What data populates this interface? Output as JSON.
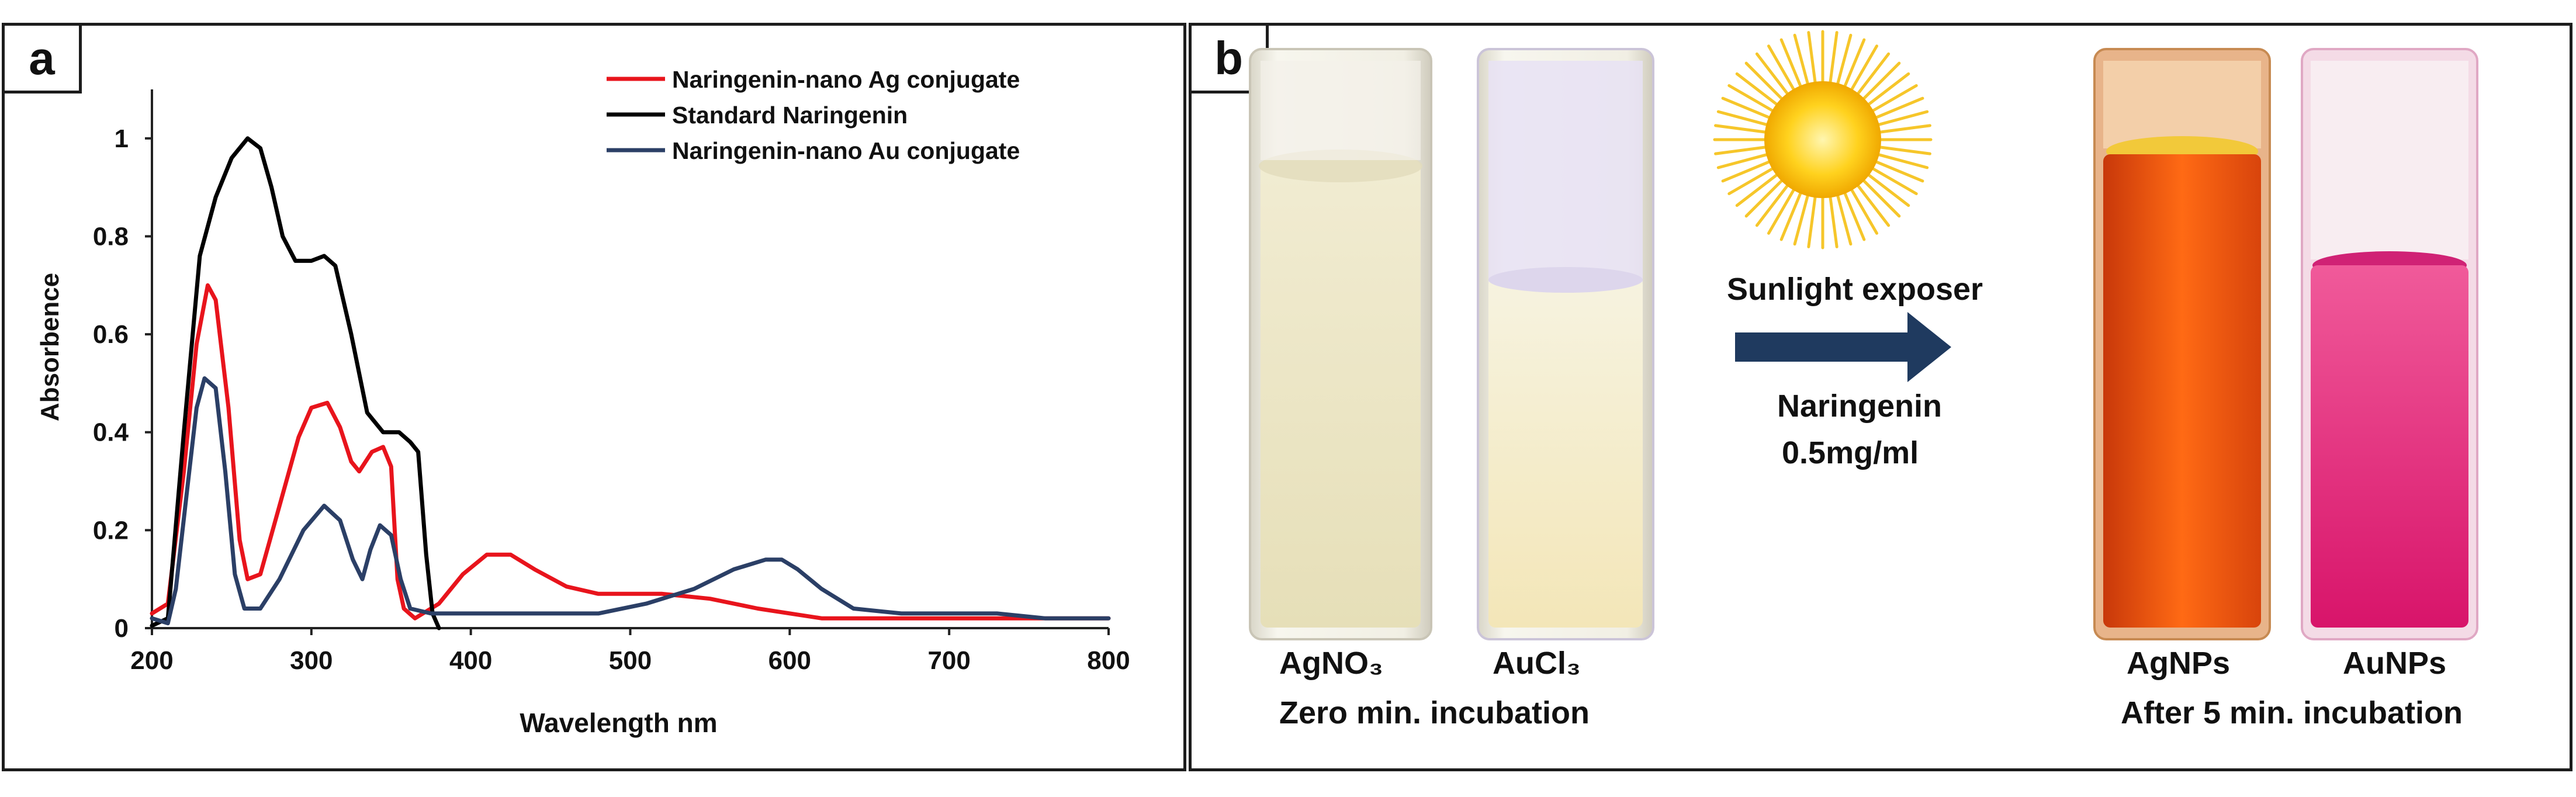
{
  "panel_a": {
    "label": "a"
  },
  "panel_b": {
    "label": "b",
    "left_caption": {
      "samples": [
        "AgNO₃",
        "AuCl₃"
      ],
      "condition": "Zero min. incubation"
    },
    "right_caption": {
      "samples": [
        "AgNPs",
        "AuNPs"
      ],
      "condition": "After 5 min. incubation"
    },
    "arrow_top_label": "Sunlight exposer",
    "arrow_bottom_label_1": "Naringenin",
    "arrow_bottom_label_2": "0.5mg/ml",
    "colors": {
      "arrow": "#1f3a5f",
      "sun": "#f3b400",
      "agno3_liquid": "#eee9c8",
      "aucl3_liquid": "#f4f0d6",
      "agnps_liquid": "#ff5a10",
      "aunps_liquid": "#e0206f"
    }
  },
  "chart_data": {
    "type": "line",
    "title": "",
    "xlabel": "Wavelength nm",
    "ylabel": "Absorbence",
    "xlim": [
      200,
      800
    ],
    "ylim": [
      0,
      1.1
    ],
    "xticks": [
      "200",
      "300",
      "400",
      "500",
      "600",
      "700",
      "800"
    ],
    "yticks": [
      "0",
      "0.2",
      "0.4",
      "0.6",
      "0.8",
      "1"
    ],
    "legend_position": "top-right",
    "series": [
      {
        "name": "Naringenin-nano Ag conjugate",
        "color": "#e8141c",
        "points": [
          [
            200,
            0.03
          ],
          [
            210,
            0.05
          ],
          [
            220,
            0.32
          ],
          [
            228,
            0.58
          ],
          [
            235,
            0.7
          ],
          [
            240,
            0.67
          ],
          [
            248,
            0.45
          ],
          [
            255,
            0.18
          ],
          [
            260,
            0.1
          ],
          [
            268,
            0.11
          ],
          [
            280,
            0.25
          ],
          [
            292,
            0.39
          ],
          [
            300,
            0.45
          ],
          [
            310,
            0.46
          ],
          [
            318,
            0.41
          ],
          [
            325,
            0.34
          ],
          [
            330,
            0.32
          ],
          [
            338,
            0.36
          ],
          [
            345,
            0.37
          ],
          [
            350,
            0.33
          ],
          [
            354,
            0.1
          ],
          [
            358,
            0.04
          ],
          [
            365,
            0.02
          ],
          [
            380,
            0.05
          ],
          [
            395,
            0.11
          ],
          [
            410,
            0.15
          ],
          [
            425,
            0.15
          ],
          [
            440,
            0.12
          ],
          [
            460,
            0.085
          ],
          [
            480,
            0.07
          ],
          [
            520,
            0.07
          ],
          [
            550,
            0.06
          ],
          [
            580,
            0.04
          ],
          [
            620,
            0.02
          ],
          [
            700,
            0.02
          ],
          [
            800,
            0.02
          ]
        ]
      },
      {
        "name": "Standard Naringenin",
        "color": "#000000",
        "points": [
          [
            200,
            0.005
          ],
          [
            210,
            0.02
          ],
          [
            220,
            0.4
          ],
          [
            230,
            0.76
          ],
          [
            240,
            0.88
          ],
          [
            250,
            0.96
          ],
          [
            260,
            1.0
          ],
          [
            268,
            0.98
          ],
          [
            275,
            0.9
          ],
          [
            282,
            0.8
          ],
          [
            290,
            0.75
          ],
          [
            300,
            0.75
          ],
          [
            308,
            0.76
          ],
          [
            315,
            0.74
          ],
          [
            325,
            0.6
          ],
          [
            335,
            0.44
          ],
          [
            345,
            0.4
          ],
          [
            355,
            0.4
          ],
          [
            362,
            0.38
          ],
          [
            367,
            0.36
          ],
          [
            372,
            0.15
          ],
          [
            376,
            0.03
          ],
          [
            380,
            0.0
          ]
        ]
      },
      {
        "name": "Naringenin-nano Au conjugate",
        "color": "#2b3f66",
        "points": [
          [
            200,
            0.02
          ],
          [
            210,
            0.01
          ],
          [
            215,
            0.08
          ],
          [
            222,
            0.28
          ],
          [
            228,
            0.45
          ],
          [
            233,
            0.51
          ],
          [
            240,
            0.49
          ],
          [
            246,
            0.32
          ],
          [
            252,
            0.11
          ],
          [
            258,
            0.04
          ],
          [
            268,
            0.04
          ],
          [
            280,
            0.1
          ],
          [
            295,
            0.2
          ],
          [
            308,
            0.25
          ],
          [
            318,
            0.22
          ],
          [
            326,
            0.14
          ],
          [
            332,
            0.1
          ],
          [
            337,
            0.16
          ],
          [
            343,
            0.21
          ],
          [
            350,
            0.19
          ],
          [
            356,
            0.1
          ],
          [
            362,
            0.04
          ],
          [
            375,
            0.03
          ],
          [
            400,
            0.03
          ],
          [
            450,
            0.03
          ],
          [
            480,
            0.03
          ],
          [
            510,
            0.05
          ],
          [
            540,
            0.08
          ],
          [
            565,
            0.12
          ],
          [
            585,
            0.14
          ],
          [
            595,
            0.14
          ],
          [
            605,
            0.12
          ],
          [
            620,
            0.08
          ],
          [
            640,
            0.04
          ],
          [
            670,
            0.03
          ],
          [
            700,
            0.03
          ],
          [
            730,
            0.03
          ],
          [
            760,
            0.02
          ],
          [
            800,
            0.02
          ]
        ]
      }
    ]
  }
}
